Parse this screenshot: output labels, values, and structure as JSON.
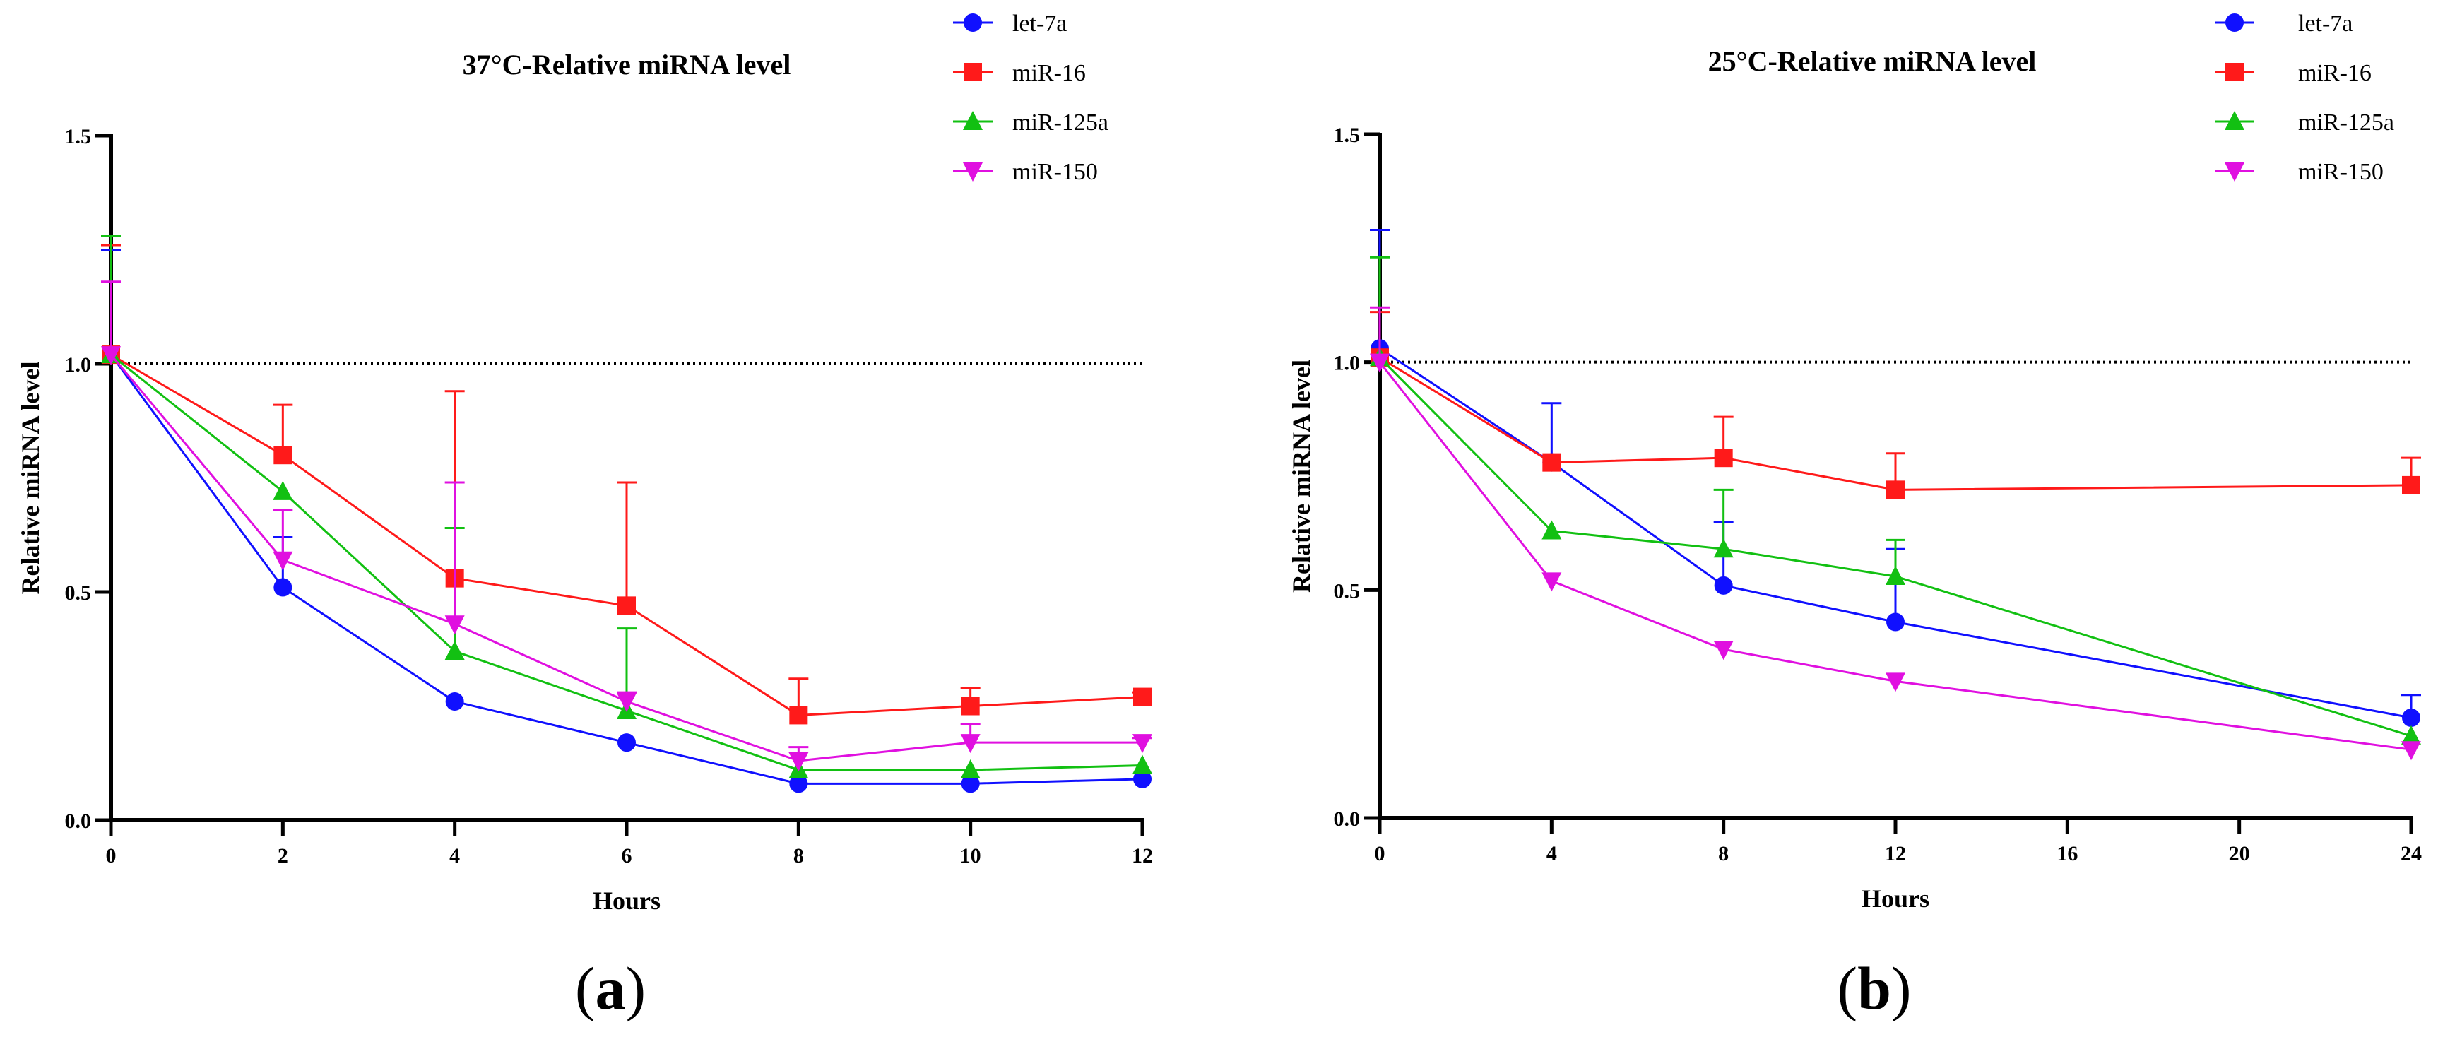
{
  "figure": {
    "panel_labels": [
      {
        "open": "(",
        "letter": "a",
        "close": ")"
      },
      {
        "open": "(",
        "letter": "b",
        "close": ")"
      }
    ]
  },
  "chart_data": [
    {
      "type": "line",
      "title": "37°C-Relative miRNA level",
      "xlabel": "Hours",
      "ylabel": "Relative miRNA level",
      "xlim": [
        0,
        12
      ],
      "ylim": [
        0,
        1.5
      ],
      "xticks": [
        0,
        2,
        4,
        6,
        8,
        10,
        12
      ],
      "xtick_labels": [
        "0",
        "2",
        "4",
        "6",
        "8",
        "10",
        "12"
      ],
      "yticks": [
        0,
        0.5,
        1.0,
        1.5
      ],
      "ytick_labels": [
        "0.0",
        "0.5",
        "1.0",
        "1.5"
      ],
      "reference_line": 1.0,
      "legend_position": "top-right",
      "x": [
        0,
        2,
        4,
        6,
        8,
        10,
        12
      ],
      "series": [
        {
          "name": "let-7a",
          "color": "#1010ff",
          "marker": "circle",
          "values": [
            1.02,
            0.51,
            0.26,
            0.17,
            0.08,
            0.08,
            0.09
          ],
          "errors": [
            0.23,
            0.11,
            0.0,
            0.0,
            0.0,
            0.0,
            0.0
          ]
        },
        {
          "name": "miR-16",
          "color": "#ff1a1a",
          "marker": "square",
          "values": [
            1.02,
            0.8,
            0.53,
            0.47,
            0.23,
            0.25,
            0.27
          ],
          "errors": [
            0.24,
            0.11,
            0.41,
            0.27,
            0.08,
            0.04,
            0.01
          ]
        },
        {
          "name": "miR-125a",
          "color": "#12c012",
          "marker": "triangle-up",
          "values": [
            1.02,
            0.72,
            0.37,
            0.24,
            0.11,
            0.11,
            0.12
          ],
          "errors": [
            0.26,
            0.0,
            0.27,
            0.18,
            0.0,
            0.0,
            0.0
          ]
        },
        {
          "name": "miR-150",
          "color": "#e010e0",
          "marker": "triangle-down",
          "values": [
            1.02,
            0.57,
            0.43,
            0.26,
            0.13,
            0.17,
            0.17
          ],
          "errors": [
            0.16,
            0.11,
            0.31,
            0.02,
            0.03,
            0.04,
            0.01
          ]
        }
      ]
    },
    {
      "type": "line",
      "title": "25°C-Relative miRNA level",
      "xlabel": "Hours",
      "ylabel": "Relative miRNA level",
      "xlim": [
        0,
        24
      ],
      "ylim": [
        0,
        1.5
      ],
      "xticks": [
        0,
        4,
        8,
        12,
        16,
        20,
        24
      ],
      "xtick_labels": [
        "0",
        "4",
        "8",
        "12",
        "16",
        "20",
        "24"
      ],
      "yticks": [
        0,
        0.5,
        1.0,
        1.5
      ],
      "ytick_labels": [
        "0.0",
        "0.5",
        "1.0",
        "1.5"
      ],
      "reference_line": 1.0,
      "legend_position": "top-right",
      "series": [
        {
          "name": "let-7a",
          "color": "#1010ff",
          "marker": "circle",
          "x": [
            0,
            4,
            8,
            12,
            24
          ],
          "values": [
            1.03,
            0.78,
            0.51,
            0.43,
            0.22
          ],
          "errors": [
            0.26,
            0.13,
            0.14,
            0.16,
            0.05
          ]
        },
        {
          "name": "miR-16",
          "color": "#ff1a1a",
          "marker": "square",
          "x": [
            0,
            4,
            8,
            12,
            24
          ],
          "values": [
            1.01,
            0.78,
            0.79,
            0.72,
            0.73
          ],
          "errors": [
            0.1,
            0.0,
            0.09,
            0.08,
            0.06
          ]
        },
        {
          "name": "miR-125a",
          "color": "#12c012",
          "marker": "triangle-up",
          "x": [
            0,
            4,
            8,
            12,
            24
          ],
          "values": [
            1.01,
            0.63,
            0.59,
            0.53,
            0.18
          ],
          "errors": [
            0.22,
            0.0,
            0.13,
            0.08,
            0.0
          ]
        },
        {
          "name": "miR-150",
          "color": "#e010e0",
          "marker": "triangle-down",
          "x": [
            0,
            4,
            8,
            12,
            24
          ],
          "values": [
            1.0,
            0.52,
            0.37,
            0.3,
            0.15
          ],
          "errors": [
            0.12,
            0.0,
            0.0,
            0.0,
            0.0
          ]
        }
      ]
    }
  ]
}
